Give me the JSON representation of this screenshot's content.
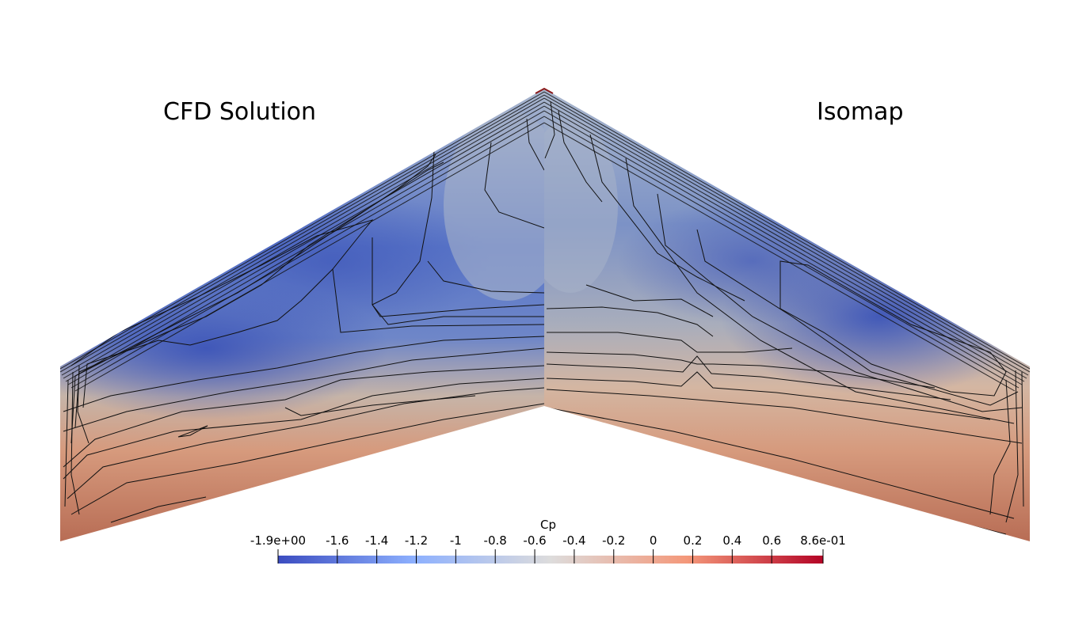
{
  "panels": {
    "left_title": "CFD Solution",
    "right_title": "Isomap"
  },
  "colorbar": {
    "title": "Cp",
    "min": -1.9,
    "max": 0.86,
    "colors": [
      "#3b4cc0",
      "#8db0fe",
      "#dddcdc",
      "#f4987a",
      "#b40426"
    ],
    "ticks": [
      {
        "value": -1.9,
        "label": "-1.9e+00"
      },
      {
        "value": -1.6,
        "label": "-1.6"
      },
      {
        "value": -1.4,
        "label": "-1.4"
      },
      {
        "value": -1.2,
        "label": "-1.2"
      },
      {
        "value": -1.0,
        "label": "-1"
      },
      {
        "value": -0.8,
        "label": "-0.8"
      },
      {
        "value": -0.6,
        "label": "-0.6"
      },
      {
        "value": -0.4,
        "label": "-0.4"
      },
      {
        "value": -0.2,
        "label": "-0.2"
      },
      {
        "value": 0.0,
        "label": "0"
      },
      {
        "value": 0.2,
        "label": "0.2"
      },
      {
        "value": 0.4,
        "label": "0.4"
      },
      {
        "value": 0.6,
        "label": "0.6"
      },
      {
        "value": 0.86,
        "label": "8.6e-01"
      }
    ]
  }
}
